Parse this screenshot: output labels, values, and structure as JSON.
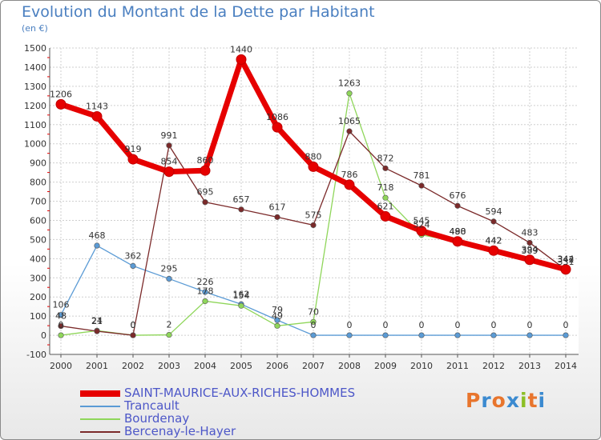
{
  "header": {
    "title": "Evolution du Montant de la Dette par Habitant",
    "subtitle": "(en €)"
  },
  "brand": {
    "text": "Proxiti",
    "colors": [
      "#e8752d",
      "#3b8ad0",
      "#e8752d",
      "#3b8ad0",
      "#8cbf26",
      "#e8752d",
      "#3b8ad0"
    ]
  },
  "chart_data": {
    "type": "line",
    "title": "Evolution du Montant de la Dette par Habitant",
    "ylabel": "(en €)",
    "xlabel": "",
    "x": [
      "2000",
      "2001",
      "2002",
      "2003",
      "2004",
      "2005",
      "2006",
      "2007",
      "2008",
      "2009",
      "2010",
      "2011",
      "2012",
      "2013",
      "2014"
    ],
    "ylim": [
      -100,
      1500
    ],
    "yticks": [
      -100,
      0,
      100,
      200,
      300,
      400,
      500,
      600,
      700,
      800,
      900,
      1000,
      1100,
      1200,
      1300,
      1400,
      1500
    ],
    "grid": true,
    "legend_position": "bottom-left",
    "series": [
      {
        "name": "SAINT-MAURICE-AUX-RICHES-HOMMES",
        "color": "#e60000",
        "values": [
          1206,
          1143,
          919,
          854,
          860,
          1440,
          1086,
          880,
          786,
          621,
          545,
          490,
          442,
          394,
          344
        ]
      },
      {
        "name": "Trancault",
        "color": "#5b9bd5",
        "values": [
          106,
          468,
          362,
          295,
          226,
          162,
          79,
          0,
          0,
          0,
          0,
          0,
          0,
          0,
          0
        ]
      },
      {
        "name": "Bourdenay",
        "color": "#8fd65a",
        "values": [
          0,
          24,
          0,
          2,
          178,
          154,
          49,
          70,
          1263,
          718,
          524,
          488,
          442,
          389,
          331
        ]
      },
      {
        "name": "Bercenay-le-Hayer",
        "color": "#7b2a2a",
        "values": [
          48,
          21,
          0,
          991,
          695,
          657,
          617,
          575,
          1065,
          872,
          781,
          676,
          594,
          483,
          342
        ]
      }
    ]
  }
}
